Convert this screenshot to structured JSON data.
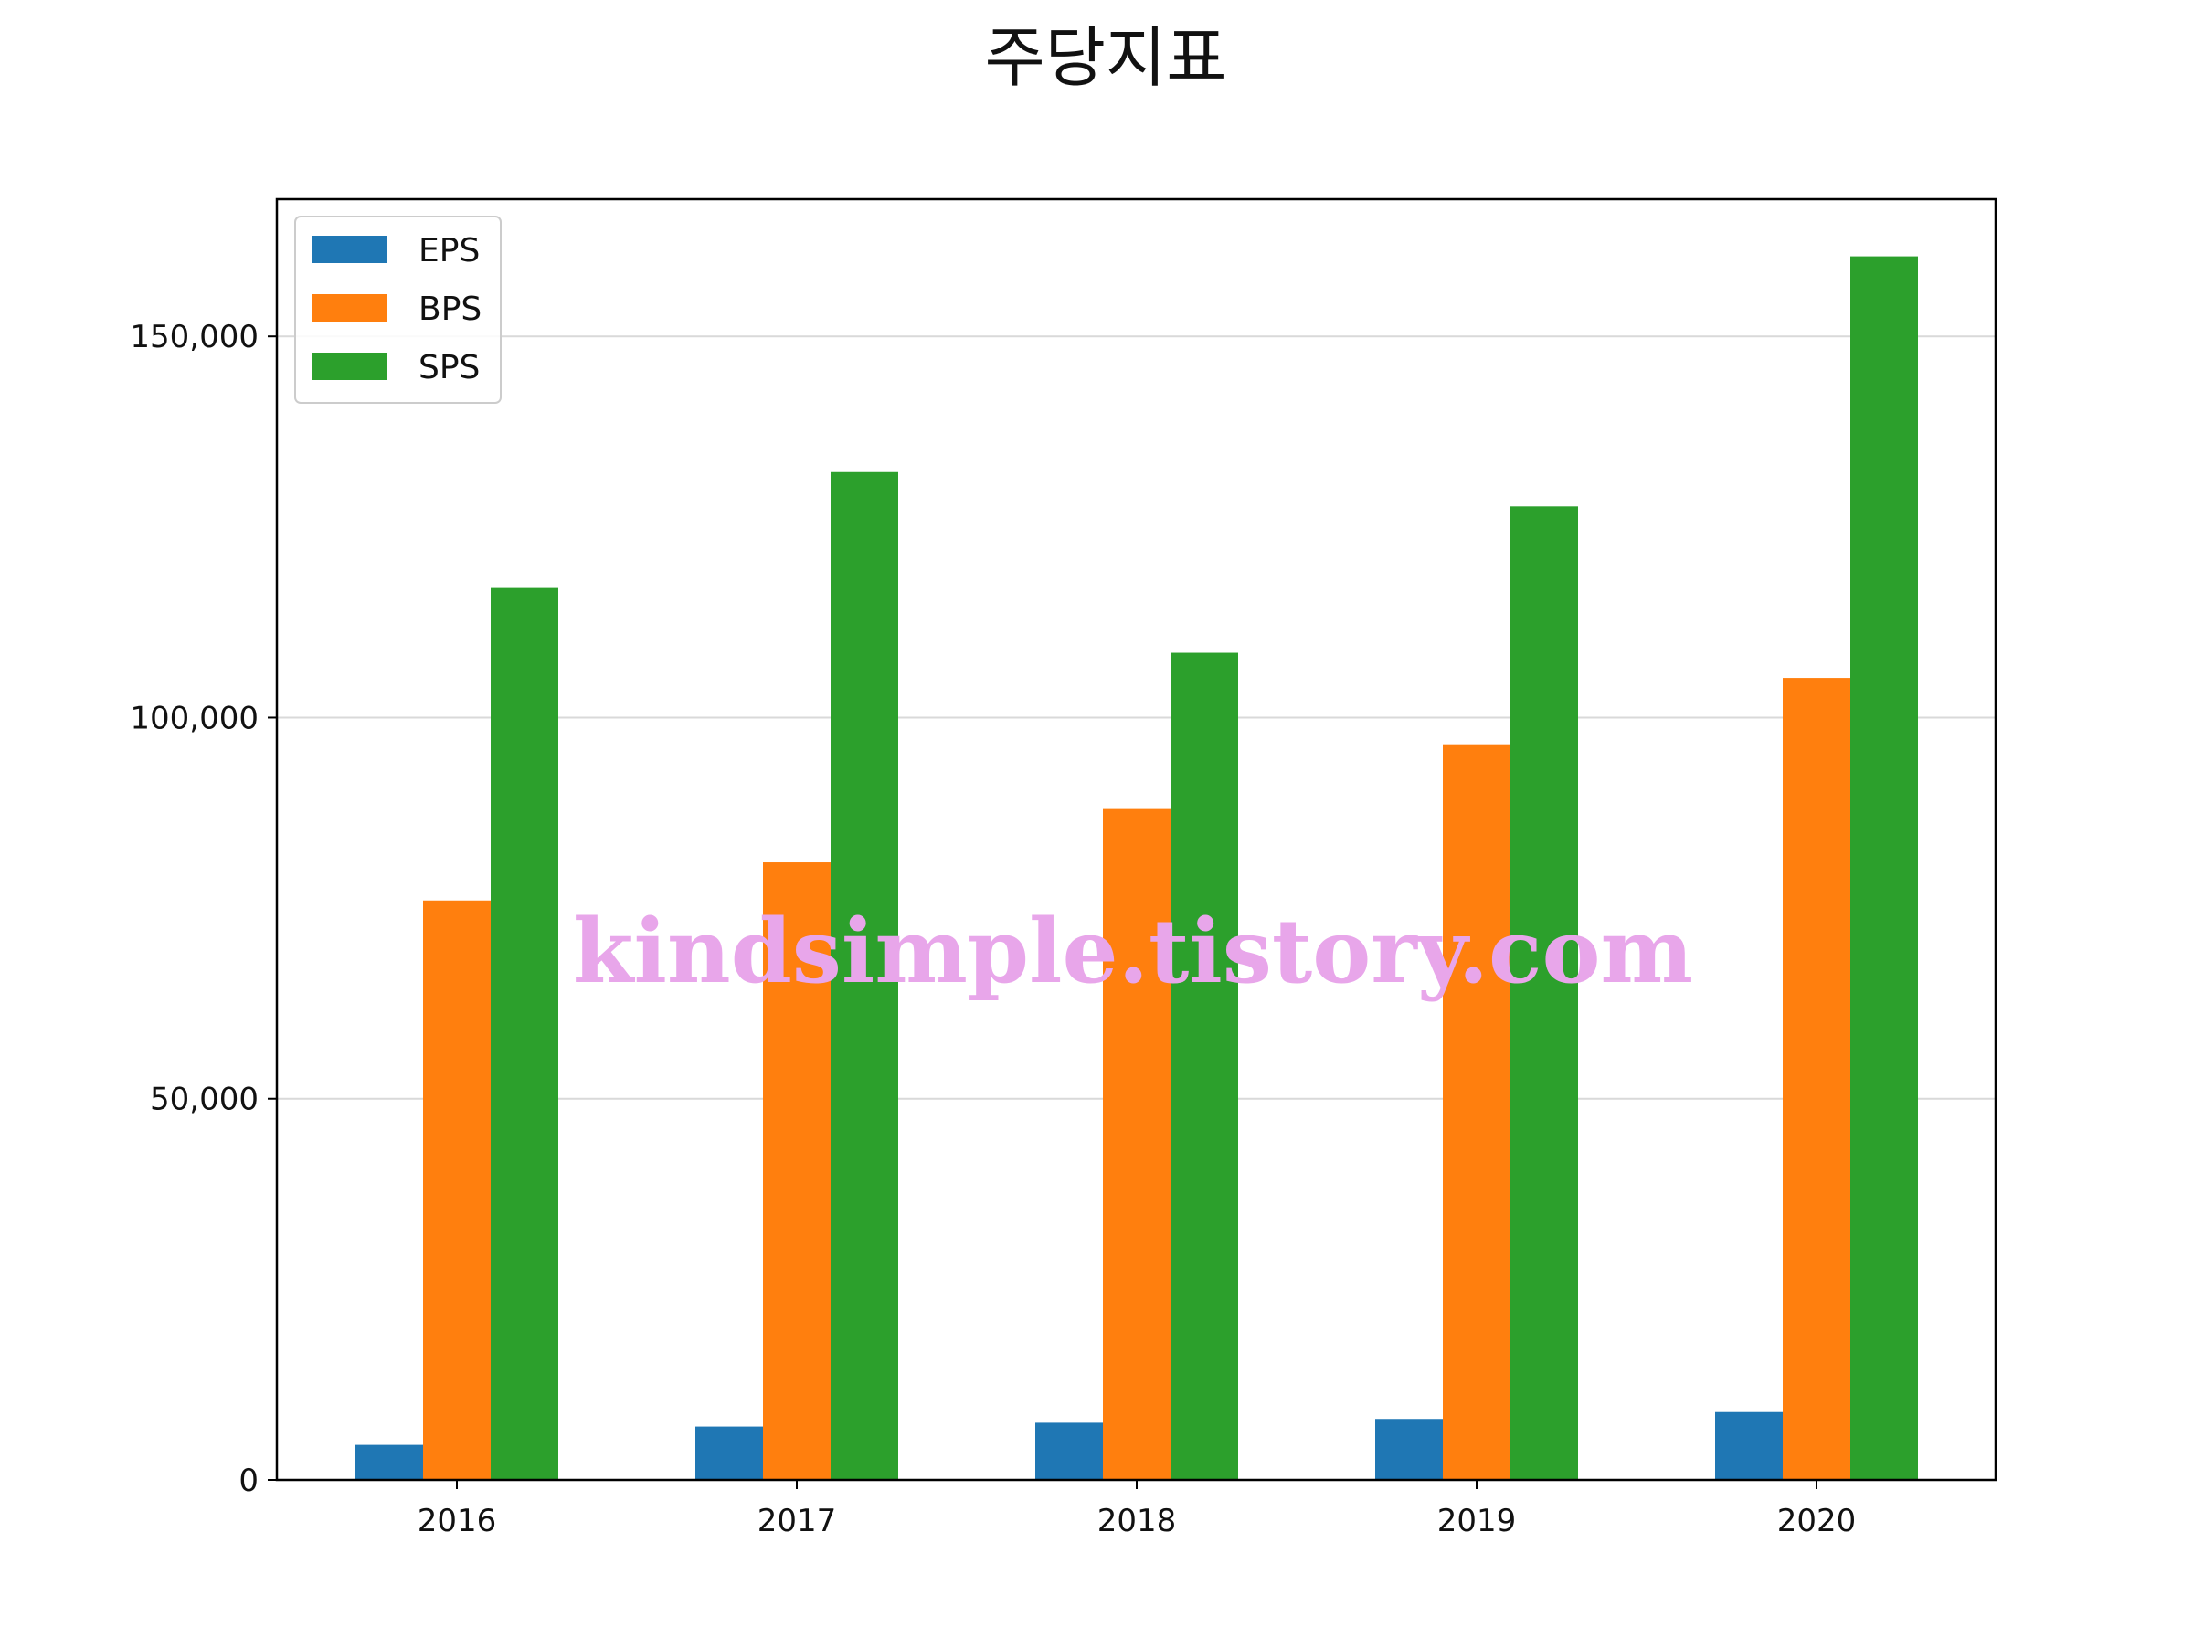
{
  "chart_data": {
    "type": "bar",
    "title": "주당지표",
    "xlabel": "",
    "ylabel": "",
    "categories": [
      "2016",
      "2017",
      "2018",
      "2019",
      "2020"
    ],
    "series": [
      {
        "name": "EPS",
        "color": "#1f77b4",
        "values": [
          4600,
          7000,
          7500,
          8000,
          8900
        ]
      },
      {
        "name": "BPS",
        "color": "#ff7f0e",
        "values": [
          76000,
          81000,
          88000,
          96500,
          105200
        ]
      },
      {
        "name": "SPS",
        "color": "#2ca02c",
        "values": [
          117000,
          132200,
          108500,
          127700,
          160500
        ]
      }
    ],
    "ylim": [
      0,
      168000
    ],
    "yticks": [
      0,
      50000,
      100000,
      150000
    ],
    "ytick_labels": [
      "0",
      "50,000",
      "100,000",
      "150,000"
    ],
    "grid": "horizontal",
    "legend_position": "top-left"
  },
  "watermark": {
    "text": "kindsimple.tistory.com",
    "color": "#e8a6ea"
  }
}
